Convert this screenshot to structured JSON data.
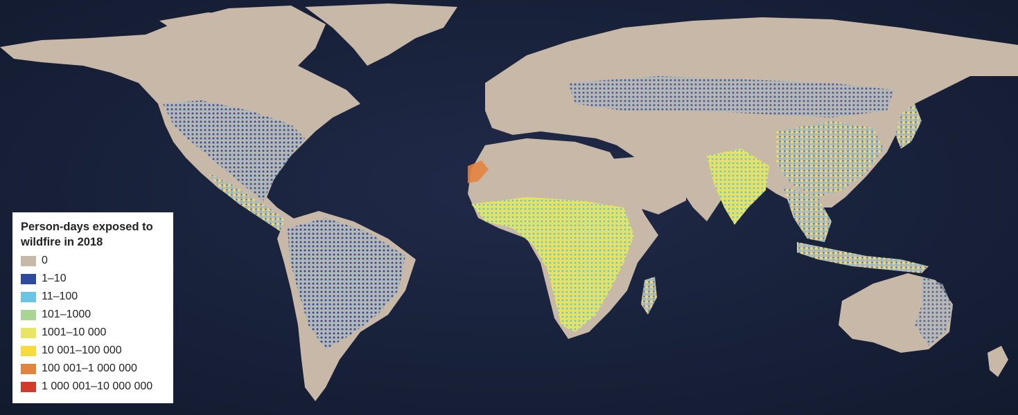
{
  "legend": {
    "title_line1": "Person-days exposed to",
    "title_line2": "wildfire in 2018",
    "items": [
      {
        "label": "0",
        "color": "#c8b8a7"
      },
      {
        "label": "1–10",
        "color": "#2e4a9e"
      },
      {
        "label": "11–100",
        "color": "#6cc4e4"
      },
      {
        "label": "101–1000",
        "color": "#a9d594"
      },
      {
        "label": "1001–10 000",
        "color": "#e8e464"
      },
      {
        "label": "10 001–100 000",
        "color": "#f5dc3c"
      },
      {
        "label": "100 001–1 000 000",
        "color": "#e2843e"
      },
      {
        "label": "1 000 001–10 000 000",
        "color": "#d33a2c"
      }
    ]
  },
  "map": {
    "ocean_color": "#1c2440",
    "land_color": "#c8b8a7",
    "regions_exposed": [
      "North America",
      "Central America",
      "South America",
      "Sub-Saharan Africa",
      "Western Sahara",
      "India",
      "China",
      "Southeast Asia",
      "Siberia",
      "Australia"
    ]
  }
}
